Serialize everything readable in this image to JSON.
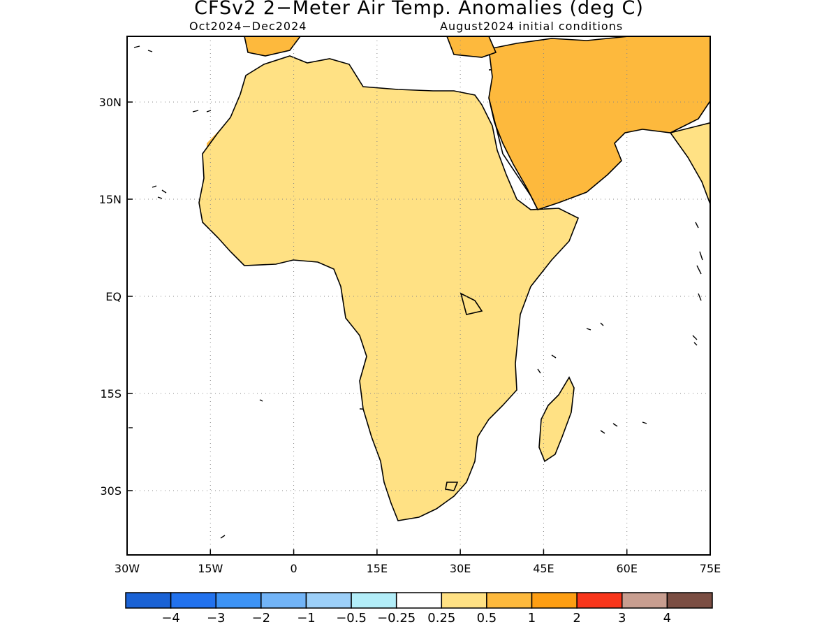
{
  "title": "CFSv2 2−Meter Air Temp. Anomalies (deg C)",
  "subtitle_left": "Oct2024−Dec2024",
  "subtitle_right": "August2024 initial conditions",
  "map": {
    "lon_range": [
      -30,
      75
    ],
    "lat_range": [
      -40,
      40
    ],
    "lon_ticks": [
      {
        "value": -30,
        "label": "30W"
      },
      {
        "value": -15,
        "label": "15W"
      },
      {
        "value": 0,
        "label": "0"
      },
      {
        "value": 15,
        "label": "15E"
      },
      {
        "value": 30,
        "label": "30E"
      },
      {
        "value": 45,
        "label": "45E"
      },
      {
        "value": 60,
        "label": "60E"
      },
      {
        "value": 75,
        "label": "75E"
      }
    ],
    "lat_ticks": [
      {
        "value": 30,
        "label": "30N"
      },
      {
        "value": 15,
        "label": "15N"
      },
      {
        "value": 0,
        "label": "EQ"
      },
      {
        "value": -15,
        "label": "15S"
      },
      {
        "value": -30,
        "label": "30S"
      }
    ],
    "grid": "dotted"
  },
  "colorbar": {
    "colors": [
      "#1a62d5",
      "#2272ee",
      "#3d93f5",
      "#72b4f7",
      "#9ccff8",
      "#b3eef9",
      "#ffffff",
      "#ffe184",
      "#fdb93d",
      "#fd9e13",
      "#f9361b",
      "#c89e90",
      "#7b4e43"
    ],
    "labels": [
      "−4",
      "−3",
      "−2",
      "−1",
      "−0.5",
      "−0.25",
      "0.25",
      "0.5",
      "1",
      "2",
      "3",
      "4"
    ]
  },
  "palette": {
    "c05": "#ffe184",
    "c1": "#fdb93d",
    "c2": "#fd9e13",
    "neg": "#b3eef9"
  }
}
